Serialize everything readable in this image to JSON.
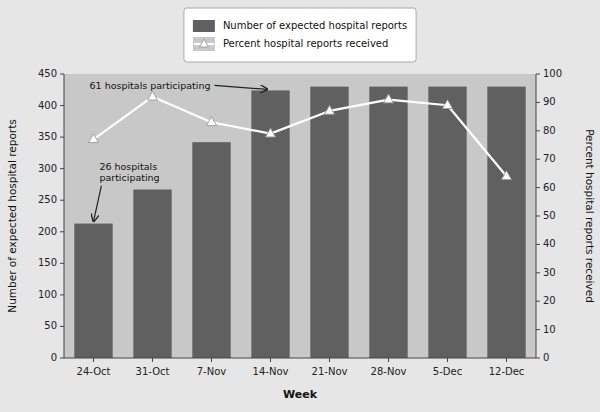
{
  "chart_data": {
    "type": "bar",
    "categories": [
      "24-Oct",
      "31-Oct",
      "7-Nov",
      "14-Nov",
      "21-Nov",
      "28-Nov",
      "5-Dec",
      "12-Dec"
    ],
    "xlabel": "Week",
    "ylabel": "Number of expected hospital reports",
    "y2label": "Percent hospital reports received",
    "ylim": [
      0,
      450
    ],
    "yticks": [
      0,
      50,
      100,
      150,
      200,
      250,
      300,
      350,
      400,
      450
    ],
    "y2lim": [
      0,
      100
    ],
    "y2ticks": [
      0,
      10,
      20,
      30,
      40,
      50,
      60,
      70,
      80,
      90,
      100
    ],
    "grid": false,
    "legend": "top",
    "series": [
      {
        "name": "Number of expected hospital reports",
        "type": "bar",
        "color": "#606060",
        "values": [
          213,
          267,
          342,
          424,
          430,
          430,
          430,
          430
        ]
      },
      {
        "name": "Percent hospital reports received",
        "type": "line",
        "axis": "y2",
        "color": "#ffffff",
        "marker": "triangle",
        "values": [
          77,
          92,
          83,
          79,
          87,
          91,
          89,
          64
        ]
      }
    ],
    "annotations": [
      {
        "text": "26 hospitals\nparticipating",
        "x": "24-Oct",
        "y": 213
      },
      {
        "text": "61 hospitals participating",
        "x": "14-Nov",
        "y": 424
      }
    ]
  }
}
